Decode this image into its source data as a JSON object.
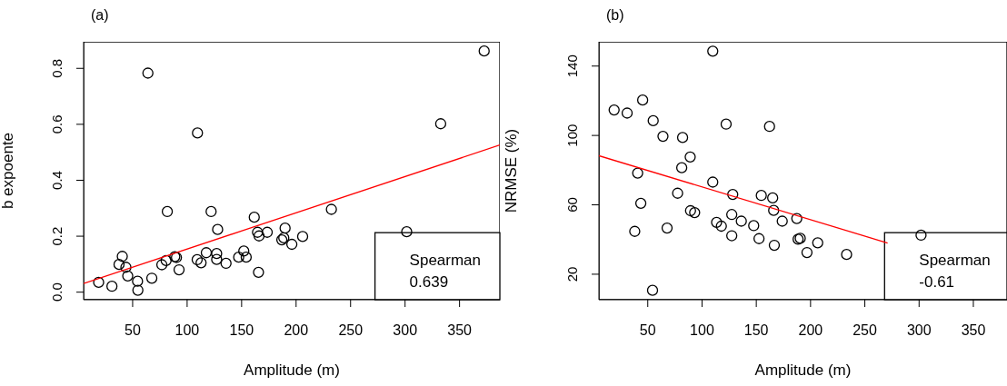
{
  "chart_data": [
    {
      "type": "scatter",
      "title": "(a)",
      "xlabel": "Amplitude (m)",
      "ylabel": "b expoente",
      "xlim": [
        5,
        387
      ],
      "xticks": [
        50,
        100,
        150,
        200,
        250,
        300,
        350
      ],
      "ylim": [
        -0.027,
        0.895
      ],
      "yticks": [
        {
          "value": 0,
          "label": "0.0"
        },
        0.2,
        0.4,
        0.6,
        0.8
      ],
      "grid": false,
      "legend": false,
      "annotations": [
        "Spearman",
        "0.639"
      ],
      "series": [
        {
          "marker": "circle",
          "color": "#000000",
          "x": [
            18.8,
            31,
            40.5,
            37.5,
            43.8,
            45.5,
            54.5,
            54.8,
            64,
            67.6,
            76.8,
            80.7,
            81.8,
            88.7,
            90.2,
            92.6,
            109.5,
            109.2,
            112.8,
            117.6,
            122,
            127.1,
            127.1,
            128,
            135.7,
            147.3,
            152,
            154.2,
            161.6,
            164.6,
            165.5,
            166,
            173.5,
            186.9,
            188.7,
            189.9,
            196.1,
            206,
            232.4,
            301.5,
            332.7,
            372.6
          ],
          "values": [
            0.035,
            0.021,
            0.128,
            0.099,
            0.089,
            0.058,
            0.039,
            0.007,
            0.783,
            0.05,
            0.098,
            0.113,
            0.288,
            0.127,
            0.124,
            0.08,
            0.569,
            0.116,
            0.105,
            0.141,
            0.288,
            0.138,
            0.117,
            0.224,
            0.103,
            0.125,
            0.147,
            0.125,
            0.268,
            0.214,
            0.071,
            0.201,
            0.214,
            0.187,
            0.194,
            0.229,
            0.171,
            0.199,
            0.296,
            0.216,
            0.602,
            0.862
          ]
        },
        {
          "type": "line",
          "color": "#ff0000",
          "x": [
            5,
            387
          ],
          "values": [
            0.031,
            0.526
          ]
        }
      ]
    },
    {
      "type": "scatter",
      "title": "(b)",
      "xlabel": "Amplitude (m)",
      "ylabel": "NRMSE (%)",
      "xlim": [
        5,
        381
      ],
      "xticks": [
        50,
        100,
        150,
        200,
        250,
        300,
        350
      ],
      "ylim": [
        5.3,
        154
      ],
      "yticks": [
        20,
        60,
        100,
        140
      ],
      "grid": false,
      "legend": false,
      "annotations": [
        "Spearman",
        "-0.61"
      ],
      "series": [
        {
          "marker": "circle",
          "color": "#000000",
          "x": [
            19,
            31,
            45.3,
            55,
            64,
            82.1,
            122.2,
            162.2,
            109.9,
            89.1,
            81.3,
            40.7,
            109.9,
            77.5,
            128.3,
            154.6,
            165.1,
            43.6,
            89.4,
            93.2,
            166,
            127.4,
            113.4,
            117.8,
            136.2,
            147.6,
            173.9,
            187.3,
            38,
            67.8,
            127.4,
            152.5,
            188.5,
            190.5,
            166.6,
            196.7,
            206.6,
            233.2,
            301.8,
            54.4
          ],
          "values": [
            114.7,
            112.9,
            120.4,
            108.5,
            99.5,
            98.8,
            106.5,
            105.2,
            148.6,
            87.6,
            81.4,
            78.3,
            73.1,
            66.7,
            66,
            65.4,
            64,
            60.9,
            56.6,
            55.5,
            56.8,
            54.4,
            49.9,
            47.7,
            50.6,
            48,
            50.6,
            52.1,
            44.7,
            46.6,
            42.2,
            40.5,
            40.2,
            40.7,
            36.7,
            32.5,
            38.1,
            31.4,
            42.5,
            10.7
          ]
        },
        {
          "type": "line",
          "color": "#ff0000",
          "x": [
            5,
            271
          ],
          "values": [
            88.3,
            38
          ]
        }
      ]
    }
  ]
}
